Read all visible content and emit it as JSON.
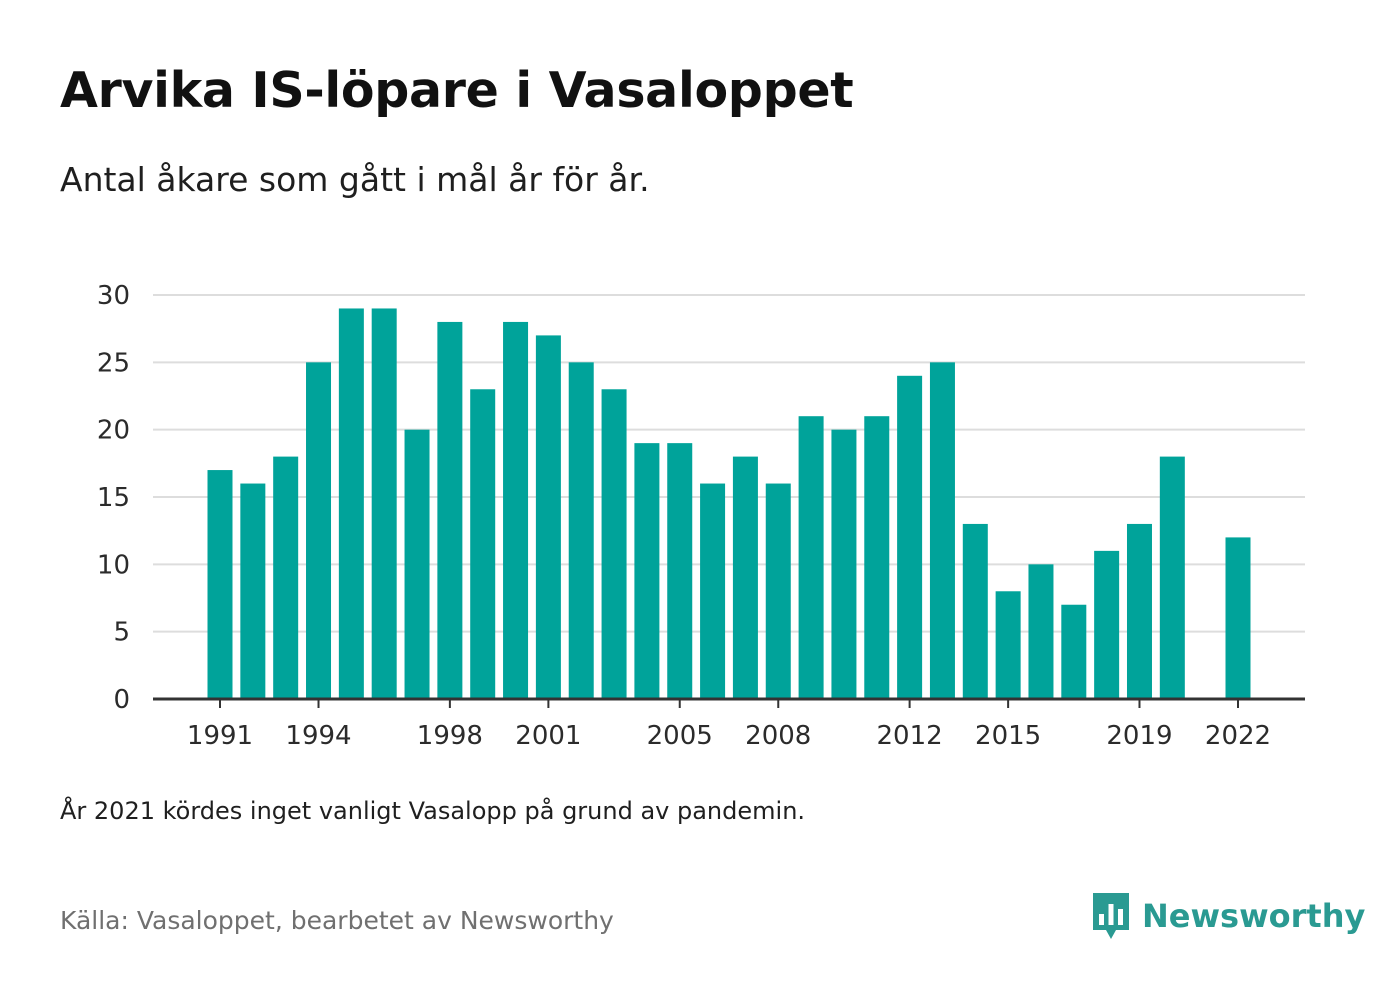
{
  "title": "Arvika IS-löpare i Vasaloppet",
  "subtitle": "Antal åkare som gått i mål år för år.",
  "note": "År 2021 kördes inget vanligt Vasalopp på grund av pandemin.",
  "source": "Källa: Vasaloppet, bearbetet av Newsworthy",
  "brand": {
    "name": "Newsworthy",
    "icon": "newsworthy-logo-icon",
    "color": "#2a9a92"
  },
  "chart_data": {
    "type": "bar",
    "title": "Arvika IS-löpare i Vasaloppet",
    "subtitle": "Antal åkare som gått i mål år för år.",
    "categories": [
      1991,
      1992,
      1993,
      1994,
      1995,
      1996,
      1997,
      1998,
      1999,
      2000,
      2001,
      2002,
      2003,
      2004,
      2005,
      2006,
      2007,
      2008,
      2009,
      2010,
      2011,
      2012,
      2013,
      2014,
      2015,
      2016,
      2017,
      2018,
      2019,
      2020,
      2021,
      2022
    ],
    "values": [
      17,
      16,
      18,
      25,
      29,
      29,
      20,
      28,
      23,
      28,
      27,
      25,
      23,
      19,
      19,
      16,
      18,
      16,
      21,
      20,
      21,
      24,
      25,
      13,
      8,
      10,
      7,
      11,
      13,
      18,
      null,
      12
    ],
    "x_tick_labels": [
      "1991",
      "1994",
      "1998",
      "2001",
      "2005",
      "2008",
      "2012",
      "2015",
      "2019",
      "2022"
    ],
    "y_ticks": [
      0,
      5,
      10,
      15,
      20,
      25,
      30
    ],
    "ylim": [
      0,
      30
    ],
    "grid": true,
    "bar_color": "#00a39a",
    "grid_color": "#dddddd",
    "axis_color": "#333333"
  }
}
